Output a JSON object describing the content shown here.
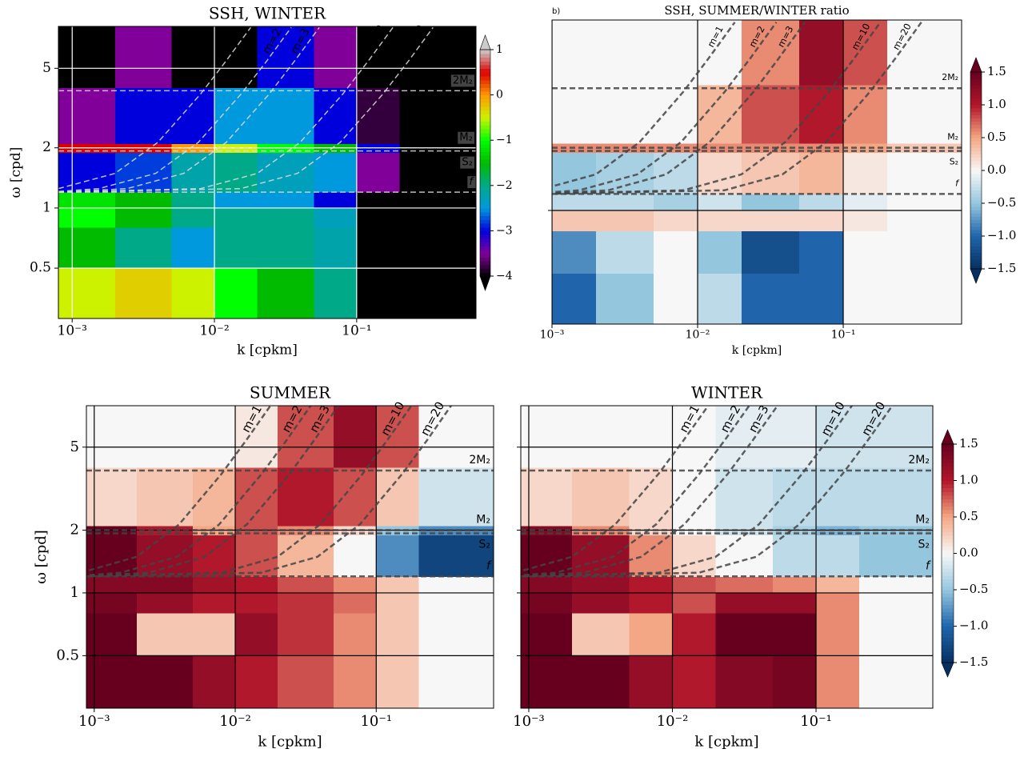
{
  "chart_data": [
    {
      "type": "heatmap",
      "title": "SSH, WINTER",
      "x_label": "k [cpkm]",
      "y_label": "ω [cpd]",
      "xlim": [
        0.0008,
        0.69
      ],
      "ylim": [
        0.28,
        8.1
      ],
      "log": true,
      "xticks": [
        {
          "value": 0.001,
          "label": "10⁻³"
        },
        {
          "value": 0.01,
          "label": "10⁻²"
        },
        {
          "value": 0.1,
          "label": "10⁻¹"
        }
      ],
      "yticks": [
        0.5,
        1,
        2,
        5
      ],
      "ytick_labels": true,
      "grid": true,
      "grid_color": "#ffffff",
      "colormap": "nipy_spectral",
      "zlim": [
        -4,
        1
      ],
      "colorbar": true,
      "cticks": [
        1,
        0,
        {
          "value": -1,
          "label": "−1"
        },
        {
          "value": -2,
          "label": "−2"
        },
        {
          "value": -3,
          "label": "−3"
        },
        {
          "value": -4,
          "label": "−4"
        }
      ],
      "x_edges": [
        0.0008,
        0.002,
        0.005,
        0.01,
        0.02,
        0.05,
        0.1,
        0.2,
        0.7
      ],
      "y_edges": [
        0.28,
        0.5,
        0.8,
        1.0,
        1.2,
        1.9,
        2.1,
        4,
        8.2
      ],
      "z": [
        [
          -0.5,
          -0.3,
          -0.5,
          -1,
          -1.5,
          -2,
          -4,
          -4
        ],
        [
          -1.5,
          -2,
          -2.5,
          -2,
          -2,
          -2.2,
          -4,
          -4
        ],
        [
          -1,
          -1.5,
          -2,
          -2,
          -2,
          -2.3,
          -4,
          -4
        ],
        [
          -1.2,
          -1.5,
          -2,
          -2.5,
          -2.5,
          -3,
          -4,
          -4
        ],
        [
          -3,
          -2.8,
          -2.2,
          -2,
          -2.3,
          -2.5,
          -3.5,
          -4
        ],
        [
          0.5,
          0.5,
          0,
          -0.5,
          -1,
          -1.5,
          -3,
          -4
        ],
        [
          -3.5,
          -3,
          -3,
          -2.5,
          -2.5,
          -3,
          -3.8,
          -4
        ],
        [
          -4,
          -3.5,
          -4,
          -4,
          -3,
          -3.5,
          -4,
          -4
        ]
      ],
      "line_color": "#dddddd",
      "curves": [
        {
          "name": "m=1",
          "x": [
            0.0008,
            0.002,
            0.004,
            0.008,
            0.012,
            0.018
          ],
          "values": [
            1.25,
            1.49,
            2.13,
            3.72,
            5.41,
            8.0
          ]
        },
        {
          "name": "m=2",
          "x": [
            0.0008,
            0.00154,
            0.00386,
            0.0077,
            0.0154,
            0.0232,
            0.0347
          ],
          "values": [
            1.21,
            1.25,
            1.49,
            2.13,
            3.72,
            5.41,
            8.0
          ]
        },
        {
          "name": "m=3",
          "x": [
            0.0008,
            0.00243,
            0.00607,
            0.0121,
            0.0243,
            0.0364,
            0.0546
          ],
          "values": [
            1.2,
            1.25,
            1.49,
            2.13,
            3.72,
            5.41,
            8.0
          ]
        },
        {
          "name": "m=10",
          "x": [
            0.0008,
            0.008,
            0.02,
            0.04,
            0.08,
            0.12,
            0.18
          ],
          "values": [
            1.2,
            1.25,
            1.49,
            2.13,
            3.72,
            5.41,
            8.0
          ]
        },
        {
          "name": "m=20",
          "x": [
            0.0008,
            0.0153,
            0.0383,
            0.0765,
            0.153,
            0.23,
            0.344
          ],
          "values": [
            1.2,
            1.25,
            1.49,
            2.13,
            3.72,
            5.41,
            8.0
          ]
        }
      ],
      "lines": [
        {
          "name": "2M₂",
          "value": 3.86
        },
        {
          "name": "M₂",
          "value": 2.0
        },
        {
          "name": "S₂",
          "value": 1.93
        },
        {
          "name": "f",
          "value": 1.2
        }
      ]
    },
    {
      "type": "heatmap",
      "panel_label": "b)",
      "title": "SSH, SUMMER/WINTER ratio",
      "x_label": "k [cpkm]",
      "xlim": [
        0.001,
        0.65
      ],
      "ylim": [
        0.285,
        8.2
      ],
      "log": true,
      "xticks": [
        {
          "value": 0.001,
          "label": "10⁻³"
        },
        {
          "value": 0.01,
          "label": "10⁻²"
        },
        {
          "value": 0.1,
          "label": "10⁻¹"
        }
      ],
      "yticks": [
        1
      ],
      "ytick_labels": false,
      "grid": true,
      "grid_color": "#000000",
      "colormap": "RdBu_r",
      "zlim": [
        -1.5,
        1.5
      ],
      "colorbar": true,
      "cticks": [
        1.5,
        {
          "value": 1,
          "label": "1.0"
        },
        0.5,
        {
          "value": 0,
          "label": "0.0"
        },
        {
          "value": -0.5,
          "label": "−0.5"
        },
        {
          "value": -1,
          "label": "−1.0"
        },
        {
          "value": -1.5,
          "label": "−1.5"
        }
      ],
      "x_edges": [
        0.0008,
        0.002,
        0.005,
        0.01,
        0.02,
        0.05,
        0.1,
        0.2,
        0.7
      ],
      "y_edges": [
        0.28,
        0.5,
        0.8,
        1.0,
        1.2,
        1.9,
        2.1,
        4,
        8.2
      ],
      "z": [
        [
          -1,
          -0.5,
          0,
          -0.3,
          -1,
          -1,
          0,
          0
        ],
        [
          -0.8,
          -0.3,
          0,
          -0.5,
          -1.2,
          -1,
          0,
          0
        ],
        [
          0.3,
          0.3,
          0.2,
          0.2,
          0.2,
          0.2,
          0.1,
          0
        ],
        [
          -0.3,
          -0.3,
          -0.4,
          -0.2,
          -0.5,
          -0.3,
          -0.1,
          0
        ],
        [
          -0.5,
          -0.4,
          -0.3,
          0.2,
          0.3,
          0.4,
          0.1,
          0
        ],
        [
          0.6,
          0.6,
          0.6,
          0.6,
          0.6,
          0.6,
          0.5,
          0.3
        ],
        [
          0,
          0,
          0,
          0.4,
          0.8,
          1,
          0.6,
          0
        ],
        [
          0,
          0,
          0,
          0,
          0.6,
          1.2,
          0.8,
          0
        ]
      ],
      "line_color": "#444444",
      "curves": [
        {
          "name": "m=1",
          "x": [
            0.0008,
            0.002,
            0.004,
            0.008,
            0.012,
            0.018
          ],
          "values": [
            1.25,
            1.49,
            2.13,
            3.72,
            5.41,
            8.0
          ]
        },
        {
          "name": "m=2",
          "x": [
            0.0008,
            0.00154,
            0.00386,
            0.0077,
            0.0154,
            0.0232,
            0.0347
          ],
          "values": [
            1.21,
            1.25,
            1.49,
            2.13,
            3.72,
            5.41,
            8.0
          ]
        },
        {
          "name": "m=3",
          "x": [
            0.0008,
            0.00243,
            0.00607,
            0.0121,
            0.0243,
            0.0364,
            0.0546
          ],
          "values": [
            1.2,
            1.25,
            1.49,
            2.13,
            3.72,
            5.41,
            8.0
          ]
        },
        {
          "name": "m=10",
          "x": [
            0.0008,
            0.008,
            0.02,
            0.04,
            0.08,
            0.12,
            0.18
          ],
          "values": [
            1.2,
            1.25,
            1.49,
            2.13,
            3.72,
            5.41,
            8.0
          ]
        },
        {
          "name": "m=20",
          "x": [
            0.0008,
            0.0153,
            0.0383,
            0.0765,
            0.153,
            0.23,
            0.344
          ],
          "values": [
            1.2,
            1.25,
            1.49,
            2.13,
            3.72,
            5.41,
            8.0
          ]
        }
      ],
      "lines": [
        {
          "name": "2M₂",
          "value": 3.86
        },
        {
          "name": "M₂",
          "value": 2.0
        },
        {
          "name": "S₂",
          "value": 1.93
        },
        {
          "name": "f",
          "value": 1.2
        }
      ]
    },
    {
      "type": "heatmap",
      "title": "SUMMER",
      "x_label": "k [cpkm]",
      "y_label": "ω [cpd]",
      "xlim": [
        0.00088,
        0.68
      ],
      "ylim": [
        0.28,
        7.9
      ],
      "log": true,
      "xticks": [
        {
          "value": 0.001,
          "label": "10⁻³"
        },
        {
          "value": 0.01,
          "label": "10⁻²"
        },
        {
          "value": 0.1,
          "label": "10⁻¹"
        }
      ],
      "yticks": [
        0.5,
        1,
        2,
        5
      ],
      "ytick_labels": true,
      "grid": true,
      "grid_color": "#000000",
      "colormap": "RdBu_r",
      "zlim": [
        -1.5,
        1.5
      ],
      "colorbar": false,
      "x_edges": [
        0.0008,
        0.002,
        0.005,
        0.01,
        0.02,
        0.05,
        0.1,
        0.2,
        0.7
      ],
      "y_edges": [
        0.28,
        0.5,
        0.8,
        1.0,
        1.2,
        1.9,
        2.1,
        4,
        8.2
      ],
      "z": [
        [
          1.5,
          1.5,
          1.2,
          1,
          0.8,
          0.6,
          0.3,
          0
        ],
        [
          1.5,
          0.3,
          0.3,
          1.2,
          0.9,
          0.6,
          0.3,
          0
        ],
        [
          1.4,
          1.2,
          1,
          1,
          0.9,
          0.7,
          0.3,
          0
        ],
        [
          1.3,
          1.3,
          1.1,
          1,
          0.8,
          0.6,
          0.3,
          0
        ],
        [
          1.5,
          1.2,
          1,
          0.8,
          0.4,
          0,
          -0.8,
          -1.3
        ],
        [
          1.5,
          1,
          0.5,
          0.8,
          0.6,
          0.2,
          -0.5,
          -0.8
        ],
        [
          0.2,
          0.3,
          0.4,
          0.8,
          1,
          0.8,
          0.3,
          -0.2
        ],
        [
          0,
          0,
          0,
          0.1,
          0.8,
          1.2,
          0.8,
          0
        ]
      ],
      "line_color": "#444444",
      "curves": [
        {
          "name": "m=1",
          "x": [
            0.0008,
            0.002,
            0.004,
            0.008,
            0.012,
            0.018
          ],
          "values": [
            1.25,
            1.49,
            2.13,
            3.72,
            5.41,
            8.0
          ]
        },
        {
          "name": "m=2",
          "x": [
            0.0008,
            0.00154,
            0.00386,
            0.0077,
            0.0154,
            0.0232,
            0.0347
          ],
          "values": [
            1.21,
            1.25,
            1.49,
            2.13,
            3.72,
            5.41,
            8.0
          ]
        },
        {
          "name": "m=3",
          "x": [
            0.0008,
            0.00243,
            0.00607,
            0.0121,
            0.0243,
            0.0364,
            0.0546
          ],
          "values": [
            1.2,
            1.25,
            1.49,
            2.13,
            3.72,
            5.41,
            8.0
          ]
        },
        {
          "name": "m=10",
          "x": [
            0.0008,
            0.008,
            0.02,
            0.04,
            0.08,
            0.12,
            0.18
          ],
          "values": [
            1.2,
            1.25,
            1.49,
            2.13,
            3.72,
            5.41,
            8.0
          ]
        },
        {
          "name": "m=20",
          "x": [
            0.0008,
            0.0153,
            0.0383,
            0.0765,
            0.153,
            0.23,
            0.344
          ],
          "values": [
            1.2,
            1.25,
            1.49,
            2.13,
            3.72,
            5.41,
            8.0
          ]
        }
      ],
      "lines": [
        {
          "name": "2M₂",
          "value": 3.86
        },
        {
          "name": "M₂",
          "value": 2.0
        },
        {
          "name": "S₂",
          "value": 1.93
        },
        {
          "name": "f",
          "value": 1.2
        }
      ]
    },
    {
      "type": "heatmap",
      "title": "WINTER",
      "x_label": "k [cpkm]",
      "xlim": [
        0.00088,
        0.65
      ],
      "ylim": [
        0.28,
        7.9
      ],
      "log": true,
      "xticks": [
        {
          "value": 0.001,
          "label": "10⁻³"
        },
        {
          "value": 0.01,
          "label": "10⁻²"
        },
        {
          "value": 0.1,
          "label": "10⁻¹"
        }
      ],
      "yticks": [
        0.5,
        1,
        2,
        5
      ],
      "ytick_labels": false,
      "grid": true,
      "grid_color": "#000000",
      "colormap": "RdBu_r",
      "zlim": [
        -1.5,
        1.5
      ],
      "colorbar": true,
      "cticks": [
        1.5,
        {
          "value": 1,
          "label": "1.0"
        },
        0.5,
        {
          "value": 0,
          "label": "0.0"
        },
        {
          "value": -0.5,
          "label": "−0.5"
        },
        {
          "value": -1,
          "label": "−1.0"
        },
        {
          "value": -1.5,
          "label": "−1.5"
        }
      ],
      "x_edges": [
        0.0008,
        0.002,
        0.005,
        0.01,
        0.02,
        0.05,
        0.1,
        0.2,
        0.7
      ],
      "y_edges": [
        0.28,
        0.5,
        0.8,
        1.0,
        1.2,
        1.9,
        2.1,
        4,
        8.2
      ],
      "z": [
        [
          1.5,
          1.5,
          1.2,
          1,
          1.3,
          1.4,
          0.6,
          0
        ],
        [
          1.5,
          0.3,
          0.5,
          1,
          1.5,
          1.5,
          0.6,
          0
        ],
        [
          1.4,
          1.2,
          1,
          0.8,
          1.2,
          1.2,
          0.6,
          0
        ],
        [
          1.3,
          1.2,
          1,
          0.8,
          0.7,
          0.6,
          0.4,
          0
        ],
        [
          1.5,
          1.2,
          0.6,
          0.2,
          0,
          -0.3,
          -0.3,
          -0.5
        ],
        [
          1.3,
          0.6,
          0.2,
          0,
          -0.2,
          -0.4,
          -0.6,
          -0.5
        ],
        [
          0.2,
          0.3,
          0.2,
          0,
          -0.2,
          -0.3,
          -0.3,
          -0.3
        ],
        [
          0,
          0,
          0,
          0,
          -0.1,
          -0.1,
          -0.2,
          -0.2
        ]
      ],
      "line_color": "#444444",
      "curves": [
        {
          "name": "m=1",
          "x": [
            0.0008,
            0.002,
            0.004,
            0.008,
            0.012,
            0.018
          ],
          "values": [
            1.25,
            1.49,
            2.13,
            3.72,
            5.41,
            8.0
          ]
        },
        {
          "name": "m=2",
          "x": [
            0.0008,
            0.00154,
            0.00386,
            0.0077,
            0.0154,
            0.0232,
            0.0347
          ],
          "values": [
            1.21,
            1.25,
            1.49,
            2.13,
            3.72,
            5.41,
            8.0
          ]
        },
        {
          "name": "m=3",
          "x": [
            0.0008,
            0.00243,
            0.00607,
            0.0121,
            0.0243,
            0.0364,
            0.0546
          ],
          "values": [
            1.2,
            1.25,
            1.49,
            2.13,
            3.72,
            5.41,
            8.0
          ]
        },
        {
          "name": "m=10",
          "x": [
            0.0008,
            0.008,
            0.02,
            0.04,
            0.08,
            0.12,
            0.18
          ],
          "values": [
            1.2,
            1.25,
            1.49,
            2.13,
            3.72,
            5.41,
            8.0
          ]
        },
        {
          "name": "m=20",
          "x": [
            0.0008,
            0.0153,
            0.0383,
            0.0765,
            0.153,
            0.23,
            0.344
          ],
          "values": [
            1.2,
            1.25,
            1.49,
            2.13,
            3.72,
            5.41,
            8.0
          ]
        }
      ],
      "lines": [
        {
          "name": "2M₂",
          "value": 3.86
        },
        {
          "name": "M₂",
          "value": 2.0
        },
        {
          "name": "S₂",
          "value": 1.93
        },
        {
          "name": "f",
          "value": 1.2
        }
      ]
    }
  ]
}
